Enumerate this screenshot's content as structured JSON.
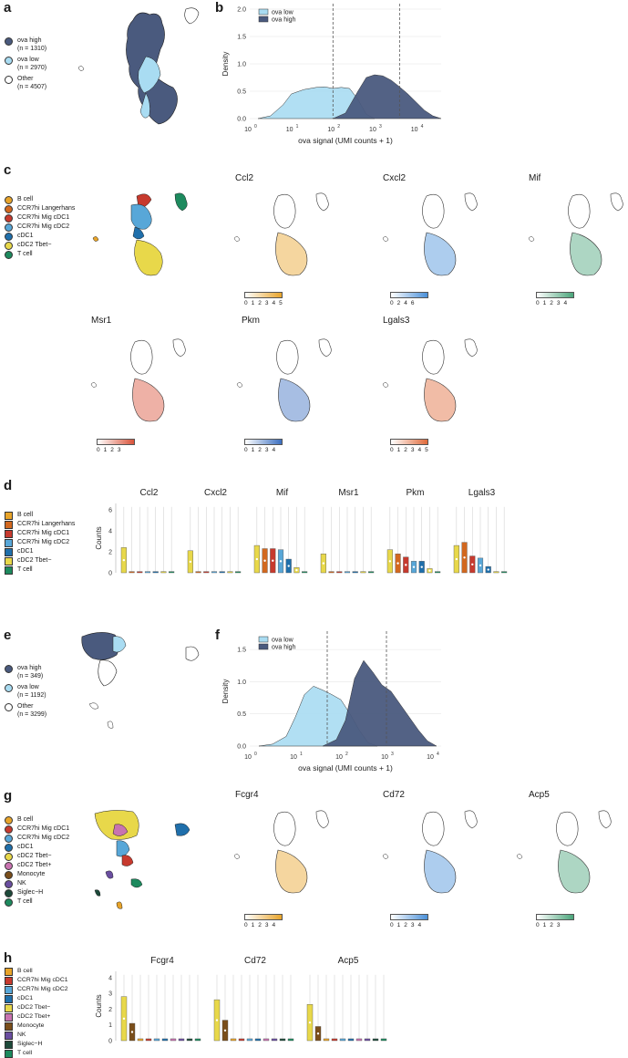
{
  "colors": {
    "ova_high": "#4a5a7e",
    "ova_low": "#a9dcf2",
    "other": "#ffffff",
    "bcell": "#e8a42a",
    "langerhans": "#d2681f",
    "mig_cdc1": "#c73a2e",
    "mig_cdc2": "#58a7d8",
    "cdc1": "#1f6fab",
    "cdc2_tbetminus": "#e8d84a",
    "tcell": "#1d8a5e",
    "cdc2_tbetplus": "#c873b0",
    "monocyte": "#7a4e1a",
    "nk": "#6a4ea0",
    "siglech": "#1d4a3a"
  },
  "panels": {
    "a": {
      "letter": "a",
      "legend": [
        {
          "label": "ova high",
          "count": "(n = 1310)",
          "color": "#4a5a7e"
        },
        {
          "label": "ova low",
          "count": "(n = 2970)",
          "color": "#a9dcf2"
        },
        {
          "label": "Other",
          "count": "(n = 4507)",
          "color": "#ffffff"
        }
      ]
    },
    "b": {
      "letter": "b",
      "legend": [
        "ova low",
        "ova high"
      ],
      "ylabel": "Density",
      "xlabel": "ova signal (UMI counts + 1)",
      "yticks": [
        "0.0",
        "0.5",
        "1.0",
        "1.5",
        "2.0"
      ],
      "xticks": [
        "10",
        "10",
        "10",
        "10",
        "10"
      ],
      "xexp": [
        "0",
        "1",
        "2",
        "3",
        "4"
      ]
    },
    "c": {
      "letter": "c",
      "legend": [
        "B cell",
        "CCR7hi Langerhans",
        "CCR7hi Mig cDC1",
        "CCR7hi Mig cDC2",
        "cDC1",
        "cDC2 Tbet−",
        "T cell"
      ],
      "genes": [
        {
          "name": "Ccl2",
          "ticks": [
            "0",
            "1",
            "2",
            "3",
            "4",
            "5"
          ],
          "color": "#e8a42a"
        },
        {
          "name": "Cxcl2",
          "ticks": [
            "0",
            "2",
            "4",
            "6"
          ],
          "color": "#4a90d9"
        },
        {
          "name": "Mif",
          "ticks": [
            "0",
            "1",
            "2",
            "3",
            "4"
          ],
          "color": "#4aa57a"
        },
        {
          "name": "Msr1",
          "ticks": [
            "0",
            "1",
            "2",
            "3"
          ],
          "color": "#d9533a"
        },
        {
          "name": "Pkm",
          "ticks": [
            "0",
            "1",
            "2",
            "3",
            "4"
          ],
          "color": "#3b6fc0"
        },
        {
          "name": "Lgals3",
          "ticks": [
            "0",
            "1",
            "2",
            "3",
            "4",
            "5"
          ],
          "color": "#e06a3a"
        }
      ]
    },
    "d": {
      "letter": "d",
      "legend": [
        "B cell",
        "CCR7hi Langerhans",
        "CCR7hi Mig cDC1",
        "CCR7hi Mig cDC2",
        "cDC1",
        "cDC2 Tbet−",
        "T cell"
      ],
      "genes": [
        "Ccl2",
        "Cxcl2",
        "Mif",
        "Msr1",
        "Pkm",
        "Lgals3"
      ],
      "ylabel": "Counts",
      "yticks": [
        "0",
        "2",
        "4",
        "6"
      ]
    },
    "e": {
      "letter": "e",
      "legend": [
        {
          "label": "ova high",
          "count": "(n = 349)",
          "color": "#4a5a7e"
        },
        {
          "label": "ova low",
          "count": "(n = 1192)",
          "color": "#a9dcf2"
        },
        {
          "label": "Other",
          "count": "(n = 3299)",
          "color": "#ffffff"
        }
      ]
    },
    "f": {
      "letter": "f",
      "legend": [
        "ova low",
        "ova high"
      ],
      "ylabel": "Density",
      "xlabel": "ova signal (UMI counts + 1)",
      "yticks": [
        "0.0",
        "0.5",
        "1.0",
        "1.5"
      ],
      "xticks": [
        "10",
        "10",
        "10",
        "10",
        "10"
      ],
      "xexp": [
        "0",
        "1",
        "2",
        "3",
        "4"
      ]
    },
    "g": {
      "letter": "g",
      "legend": [
        "B cell",
        "CCR7hi Mig cDC1",
        "CCR7hi Mig cDC2",
        "cDC1",
        "cDC2 Tbet−",
        "cDC2 Tbet+",
        "Monocyte",
        "NK",
        "Siglec−H",
        "T cell"
      ],
      "genes": [
        {
          "name": "Fcgr4",
          "ticks": [
            "0",
            "1",
            "2",
            "3",
            "4"
          ],
          "color": "#e8a42a"
        },
        {
          "name": "Cd72",
          "ticks": [
            "0",
            "1",
            "2",
            "3",
            "4"
          ],
          "color": "#4a90d9"
        },
        {
          "name": "Acp5",
          "ticks": [
            "0",
            "1",
            "2",
            "3"
          ],
          "color": "#4aa57a"
        }
      ]
    },
    "h": {
      "letter": "h",
      "legend": [
        "B cell",
        "CCR7hi Mig cDC1",
        "CCR7hi Mig cDC2",
        "cDC1",
        "cDC2 Tbet−",
        "cDC2 Tbet+",
        "Monocyte",
        "NK",
        "Siglec−H",
        "T cell"
      ],
      "genes": [
        "Fcgr4",
        "Cd72",
        "Acp5"
      ],
      "ylabel": "Counts",
      "yticks": [
        "0",
        "1",
        "2",
        "3",
        "4"
      ]
    }
  },
  "chart_data": [
    {
      "type": "area",
      "title": "",
      "panel": "b",
      "xlabel": "ova signal (UMI counts + 1)",
      "ylabel": "Density",
      "xscale": "log10",
      "xlim": [
        0,
        4.6
      ],
      "ylim": [
        0,
        2.0
      ],
      "thresholds_log10": [
        2.0,
        3.6
      ],
      "series": [
        {
          "name": "ova low",
          "x": [
            0.2,
            0.5,
            0.8,
            1.0,
            1.3,
            1.6,
            1.8,
            2.0,
            2.2,
            2.4,
            2.6,
            2.8,
            3.0
          ],
          "values": [
            0.0,
            0.05,
            0.25,
            0.45,
            0.53,
            0.57,
            0.58,
            0.55,
            0.57,
            0.55,
            0.35,
            0.08,
            0.0
          ]
        },
        {
          "name": "ova high",
          "x": [
            2.0,
            2.3,
            2.6,
            2.8,
            3.0,
            3.2,
            3.4,
            3.6,
            3.8,
            4.0,
            4.2,
            4.4,
            4.6
          ],
          "values": [
            0.0,
            0.1,
            0.5,
            0.75,
            0.8,
            0.78,
            0.7,
            0.58,
            0.45,
            0.3,
            0.15,
            0.05,
            0.0
          ]
        }
      ]
    },
    {
      "type": "area",
      "title": "",
      "panel": "f",
      "xlabel": "ova signal (UMI counts + 1)",
      "ylabel": "Density",
      "xscale": "log10",
      "xlim": [
        0,
        4.2
      ],
      "ylim": [
        0,
        1.7
      ],
      "thresholds_log10": [
        1.7,
        3.0
      ],
      "series": [
        {
          "name": "ova low",
          "x": [
            0.2,
            0.5,
            0.8,
            1.0,
            1.2,
            1.4,
            1.6,
            1.8,
            2.0,
            2.2,
            2.4,
            2.6,
            2.8
          ],
          "values": [
            0.0,
            0.03,
            0.15,
            0.45,
            0.8,
            0.93,
            0.87,
            0.8,
            0.72,
            0.5,
            0.25,
            0.05,
            0.0
          ]
        },
        {
          "name": "ova high",
          "x": [
            1.6,
            1.9,
            2.1,
            2.3,
            2.5,
            2.7,
            2.9,
            3.1,
            3.3,
            3.5,
            3.7,
            3.9,
            4.1
          ],
          "values": [
            0.0,
            0.1,
            0.4,
            1.05,
            1.33,
            1.15,
            0.95,
            0.85,
            0.65,
            0.45,
            0.25,
            0.08,
            0.0
          ]
        }
      ]
    }
  ]
}
